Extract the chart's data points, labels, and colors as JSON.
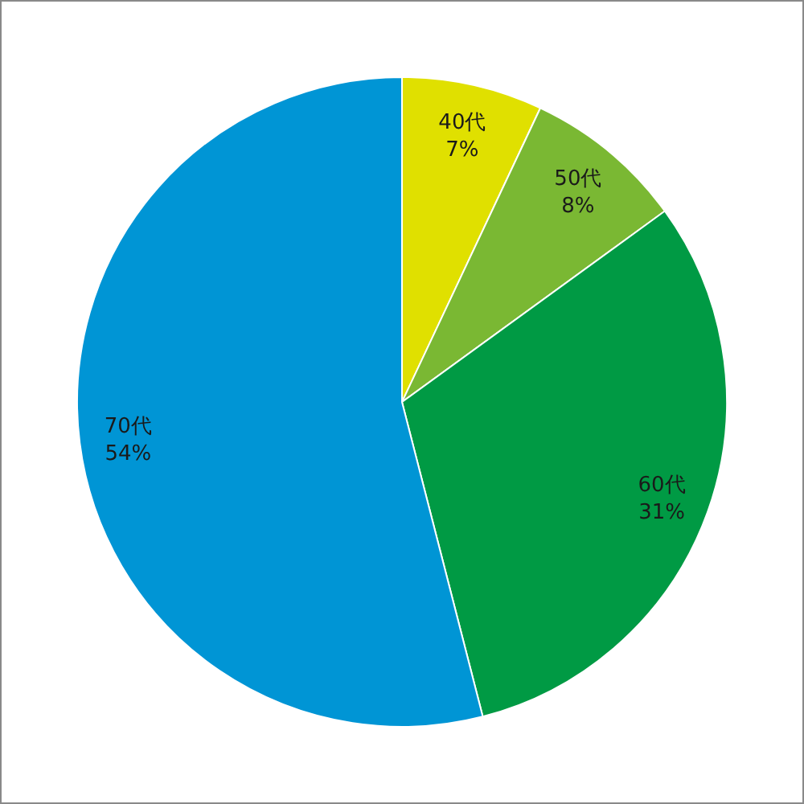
{
  "chart_data": {
    "type": "pie",
    "categories": [
      "40代",
      "50代",
      "60代",
      "70代"
    ],
    "values": [
      7,
      8,
      31,
      54
    ],
    "colors": [
      "#e0e000",
      "#7ab833",
      "#009a44",
      "#0095d5"
    ],
    "value_labels": [
      "7%",
      "8%",
      "31%",
      "54%"
    ]
  }
}
